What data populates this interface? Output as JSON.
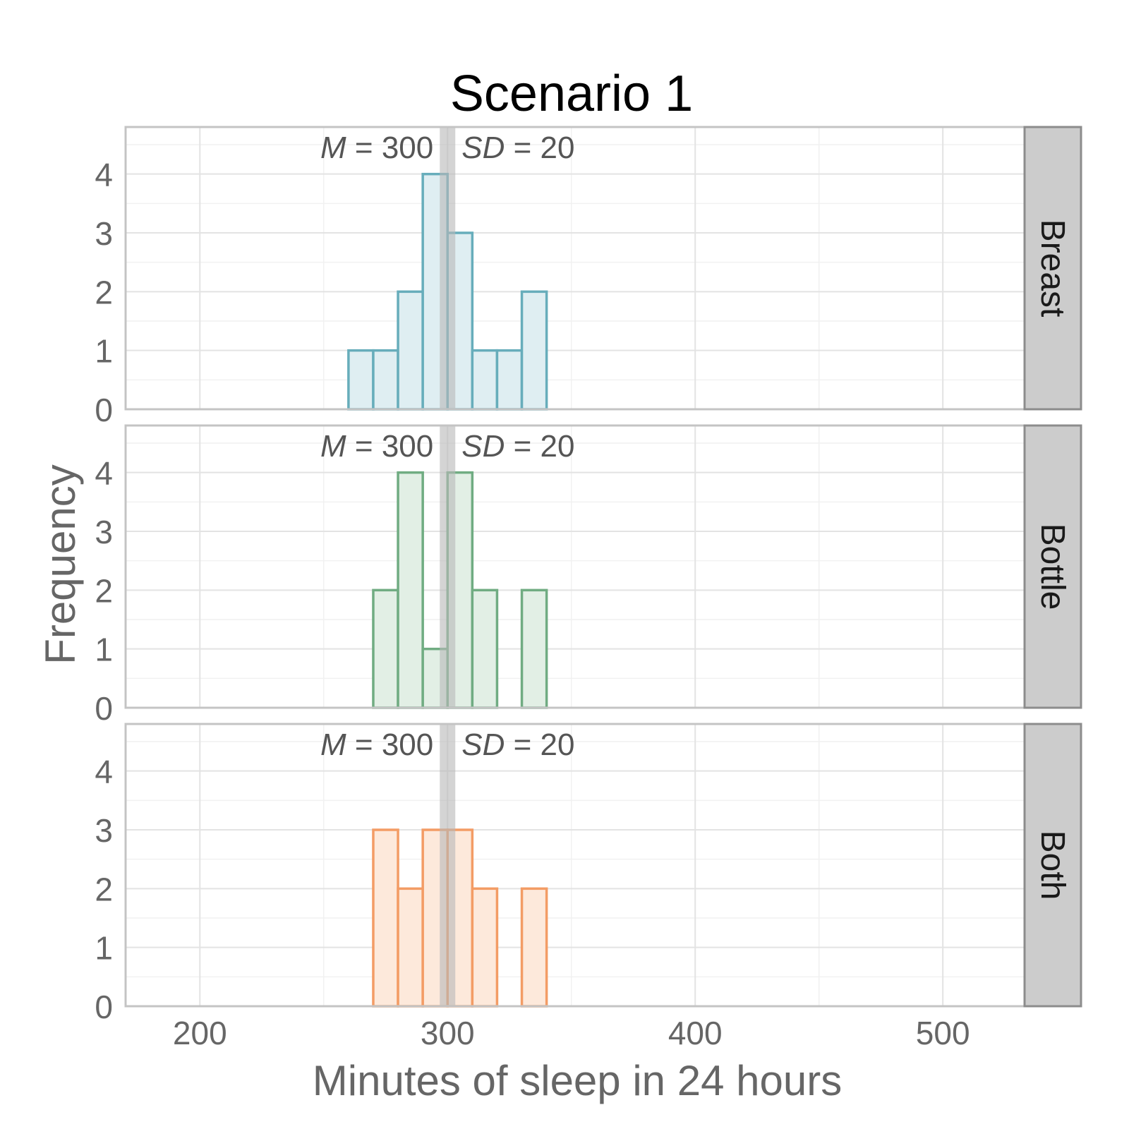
{
  "chart_data": {
    "type": "bar",
    "title": "Scenario 1",
    "xlabel": "Minutes of sleep in 24 hours",
    "ylabel": "Frequency",
    "xlim": [
      170,
      533
    ],
    "ylim": [
      0,
      4.8
    ],
    "x_ticks": [
      200,
      300,
      400,
      500
    ],
    "x_tick_labels": [
      "200",
      "300",
      "400",
      "500"
    ],
    "y_ticks": [
      0,
      1,
      2,
      3,
      4
    ],
    "y_tick_labels": [
      "0",
      "1",
      "2",
      "3",
      "4"
    ],
    "bin_width": 10,
    "grid": true,
    "mean_line": 300,
    "annotation_parts": {
      "m_symbol": "M",
      "equals": "=",
      "m_value": "300",
      "sd_symbol": "SD",
      "sd_value": "20"
    },
    "panels": [
      {
        "strip_label": "Breast",
        "fill": "#dfeef2",
        "stroke": "#67adbb",
        "bins": [
          {
            "x0": 260,
            "x1": 270,
            "count": 1
          },
          {
            "x0": 270,
            "x1": 280,
            "count": 1
          },
          {
            "x0": 280,
            "x1": 290,
            "count": 2
          },
          {
            "x0": 290,
            "x1": 300,
            "count": 4
          },
          {
            "x0": 300,
            "x1": 310,
            "count": 3
          },
          {
            "x0": 310,
            "x1": 320,
            "count": 1
          },
          {
            "x0": 320,
            "x1": 330,
            "count": 1
          },
          {
            "x0": 330,
            "x1": 340,
            "count": 2
          }
        ]
      },
      {
        "strip_label": "Bottle",
        "fill": "#e2efe5",
        "stroke": "#70ac82",
        "bins": [
          {
            "x0": 270,
            "x1": 280,
            "count": 2
          },
          {
            "x0": 280,
            "x1": 290,
            "count": 4
          },
          {
            "x0": 290,
            "x1": 300,
            "count": 1
          },
          {
            "x0": 300,
            "x1": 310,
            "count": 4
          },
          {
            "x0": 310,
            "x1": 320,
            "count": 2
          },
          {
            "x0": 330,
            "x1": 340,
            "count": 2
          }
        ]
      },
      {
        "strip_label": "Both",
        "fill": "#fde9db",
        "stroke": "#f39c65",
        "bins": [
          {
            "x0": 270,
            "x1": 280,
            "count": 3
          },
          {
            "x0": 280,
            "x1": 290,
            "count": 2
          },
          {
            "x0": 290,
            "x1": 300,
            "count": 3
          },
          {
            "x0": 300,
            "x1": 310,
            "count": 3
          },
          {
            "x0": 310,
            "x1": 320,
            "count": 2
          },
          {
            "x0": 330,
            "x1": 340,
            "count": 2
          }
        ]
      }
    ]
  }
}
